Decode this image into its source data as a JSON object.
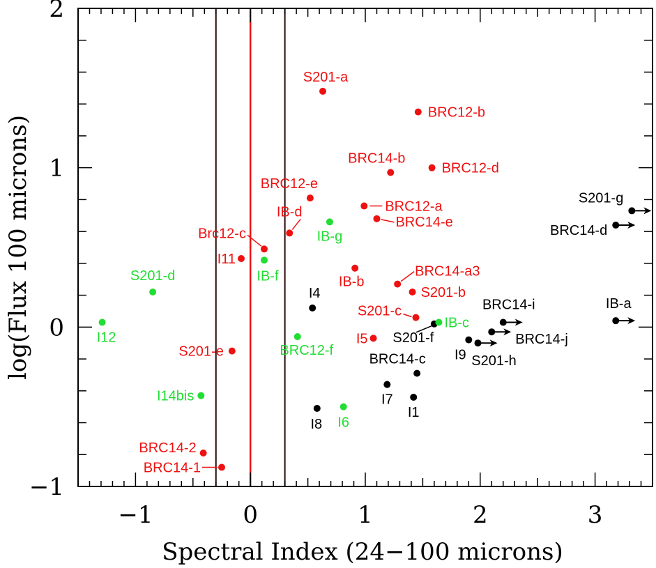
{
  "chart_data": {
    "type": "scatter",
    "title": "",
    "xlabel": "Spectral Index (24−100 microns)",
    "ylabel": "log(Flux 100 microns)",
    "xlim": [
      -1.5,
      3.5
    ],
    "ylim": [
      -1,
      2
    ],
    "x_ticks": [
      {
        "value": -1,
        "label": "−1"
      },
      {
        "value": 0,
        "label": "0"
      },
      {
        "value": 1,
        "label": "1"
      },
      {
        "value": 2,
        "label": "2"
      },
      {
        "value": 3,
        "label": "3"
      }
    ],
    "y_ticks": [
      {
        "value": -1,
        "label": "−1"
      },
      {
        "value": 0,
        "label": "0"
      },
      {
        "value": 1,
        "label": "1"
      },
      {
        "value": 2,
        "label": "2"
      }
    ],
    "colors": {
      "red": "#ee1111",
      "green": "#22dd33",
      "black": "#000000",
      "grid_line": "#2a0a0a"
    },
    "vertical_lines": [
      {
        "x": -0.3,
        "color": "#2a0a0a"
      },
      {
        "x": 0.0,
        "color": "#ee1111"
      },
      {
        "x": 0.3,
        "color": "#2a0a0a"
      }
    ],
    "points": [
      {
        "name": "S201-a",
        "x": 0.63,
        "y": 1.48,
        "color": "red"
      },
      {
        "name": "BRC12-b",
        "x": 1.46,
        "y": 1.35,
        "color": "red"
      },
      {
        "name": "BRC14-b",
        "x": 1.22,
        "y": 0.97,
        "color": "red"
      },
      {
        "name": "BRC12-d",
        "x": 1.58,
        "y": 1.0,
        "color": "red"
      },
      {
        "name": "BRC12-e",
        "x": 0.52,
        "y": 0.81,
        "color": "red"
      },
      {
        "name": "BRC12-a",
        "x": 0.99,
        "y": 0.76,
        "color": "red"
      },
      {
        "name": "BRC14-e",
        "x": 1.1,
        "y": 0.68,
        "color": "red"
      },
      {
        "name": "IB-d",
        "x": 0.34,
        "y": 0.59,
        "color": "red"
      },
      {
        "name": "IB-g",
        "x": 0.69,
        "y": 0.66,
        "color": "green"
      },
      {
        "name": "Brc12-c",
        "x": 0.12,
        "y": 0.49,
        "color": "red"
      },
      {
        "name": "I11",
        "x": -0.08,
        "y": 0.43,
        "color": "red"
      },
      {
        "name": "IB-f",
        "x": 0.12,
        "y": 0.42,
        "color": "green"
      },
      {
        "name": "S201-d",
        "x": -0.85,
        "y": 0.22,
        "color": "green"
      },
      {
        "name": "IB-b",
        "x": 0.91,
        "y": 0.37,
        "color": "red"
      },
      {
        "name": "BRC14-a3",
        "x": 1.28,
        "y": 0.27,
        "color": "red"
      },
      {
        "name": "S201-b",
        "x": 1.41,
        "y": 0.22,
        "color": "red"
      },
      {
        "name": "I4",
        "x": 0.54,
        "y": 0.12,
        "color": "black"
      },
      {
        "name": "S201-c",
        "x": 1.44,
        "y": 0.06,
        "color": "red"
      },
      {
        "name": "I12",
        "x": -1.29,
        "y": 0.03,
        "color": "green"
      },
      {
        "name": "S201-f",
        "x": 1.6,
        "y": 0.02,
        "color": "black"
      },
      {
        "name": "IB-c",
        "x": 1.64,
        "y": 0.03,
        "color": "green"
      },
      {
        "name": "I5",
        "x": 1.07,
        "y": -0.07,
        "color": "red"
      },
      {
        "name": "BRC12-f",
        "x": 0.41,
        "y": -0.06,
        "color": "green"
      },
      {
        "name": "S201-e",
        "x": -0.16,
        "y": -0.15,
        "color": "red"
      },
      {
        "name": "I9",
        "x": 1.9,
        "y": -0.08,
        "color": "black"
      },
      {
        "name": "BRC14-c",
        "x": 1.45,
        "y": -0.29,
        "color": "black"
      },
      {
        "name": "I14bis",
        "x": -0.43,
        "y": -0.43,
        "color": "green"
      },
      {
        "name": "I7",
        "x": 1.19,
        "y": -0.36,
        "color": "black"
      },
      {
        "name": "I1",
        "x": 1.42,
        "y": -0.44,
        "color": "black"
      },
      {
        "name": "I8",
        "x": 0.58,
        "y": -0.51,
        "color": "black"
      },
      {
        "name": "I6",
        "x": 0.81,
        "y": -0.5,
        "color": "green"
      },
      {
        "name": "BRC14-2",
        "x": -0.41,
        "y": -0.79,
        "color": "red"
      },
      {
        "name": "BRC14-1",
        "x": -0.25,
        "y": -0.88,
        "color": "red"
      },
      {
        "name": "S201-g",
        "x": 3.32,
        "y": 0.73,
        "color": "black",
        "arrow": true
      },
      {
        "name": "BRC14-d",
        "x": 3.18,
        "y": 0.64,
        "color": "black",
        "arrow": true
      },
      {
        "name": "IB-a",
        "x": 3.18,
        "y": 0.04,
        "color": "black",
        "arrow": true
      },
      {
        "name": "BRC14-i",
        "x": 2.2,
        "y": 0.03,
        "color": "black",
        "arrow": true
      },
      {
        "name": "BRC14-j",
        "x": 2.1,
        "y": -0.03,
        "color": "black",
        "arrow": true
      },
      {
        "name": "S201-h",
        "x": 1.98,
        "y": -0.1,
        "color": "black",
        "arrow": true
      }
    ]
  }
}
